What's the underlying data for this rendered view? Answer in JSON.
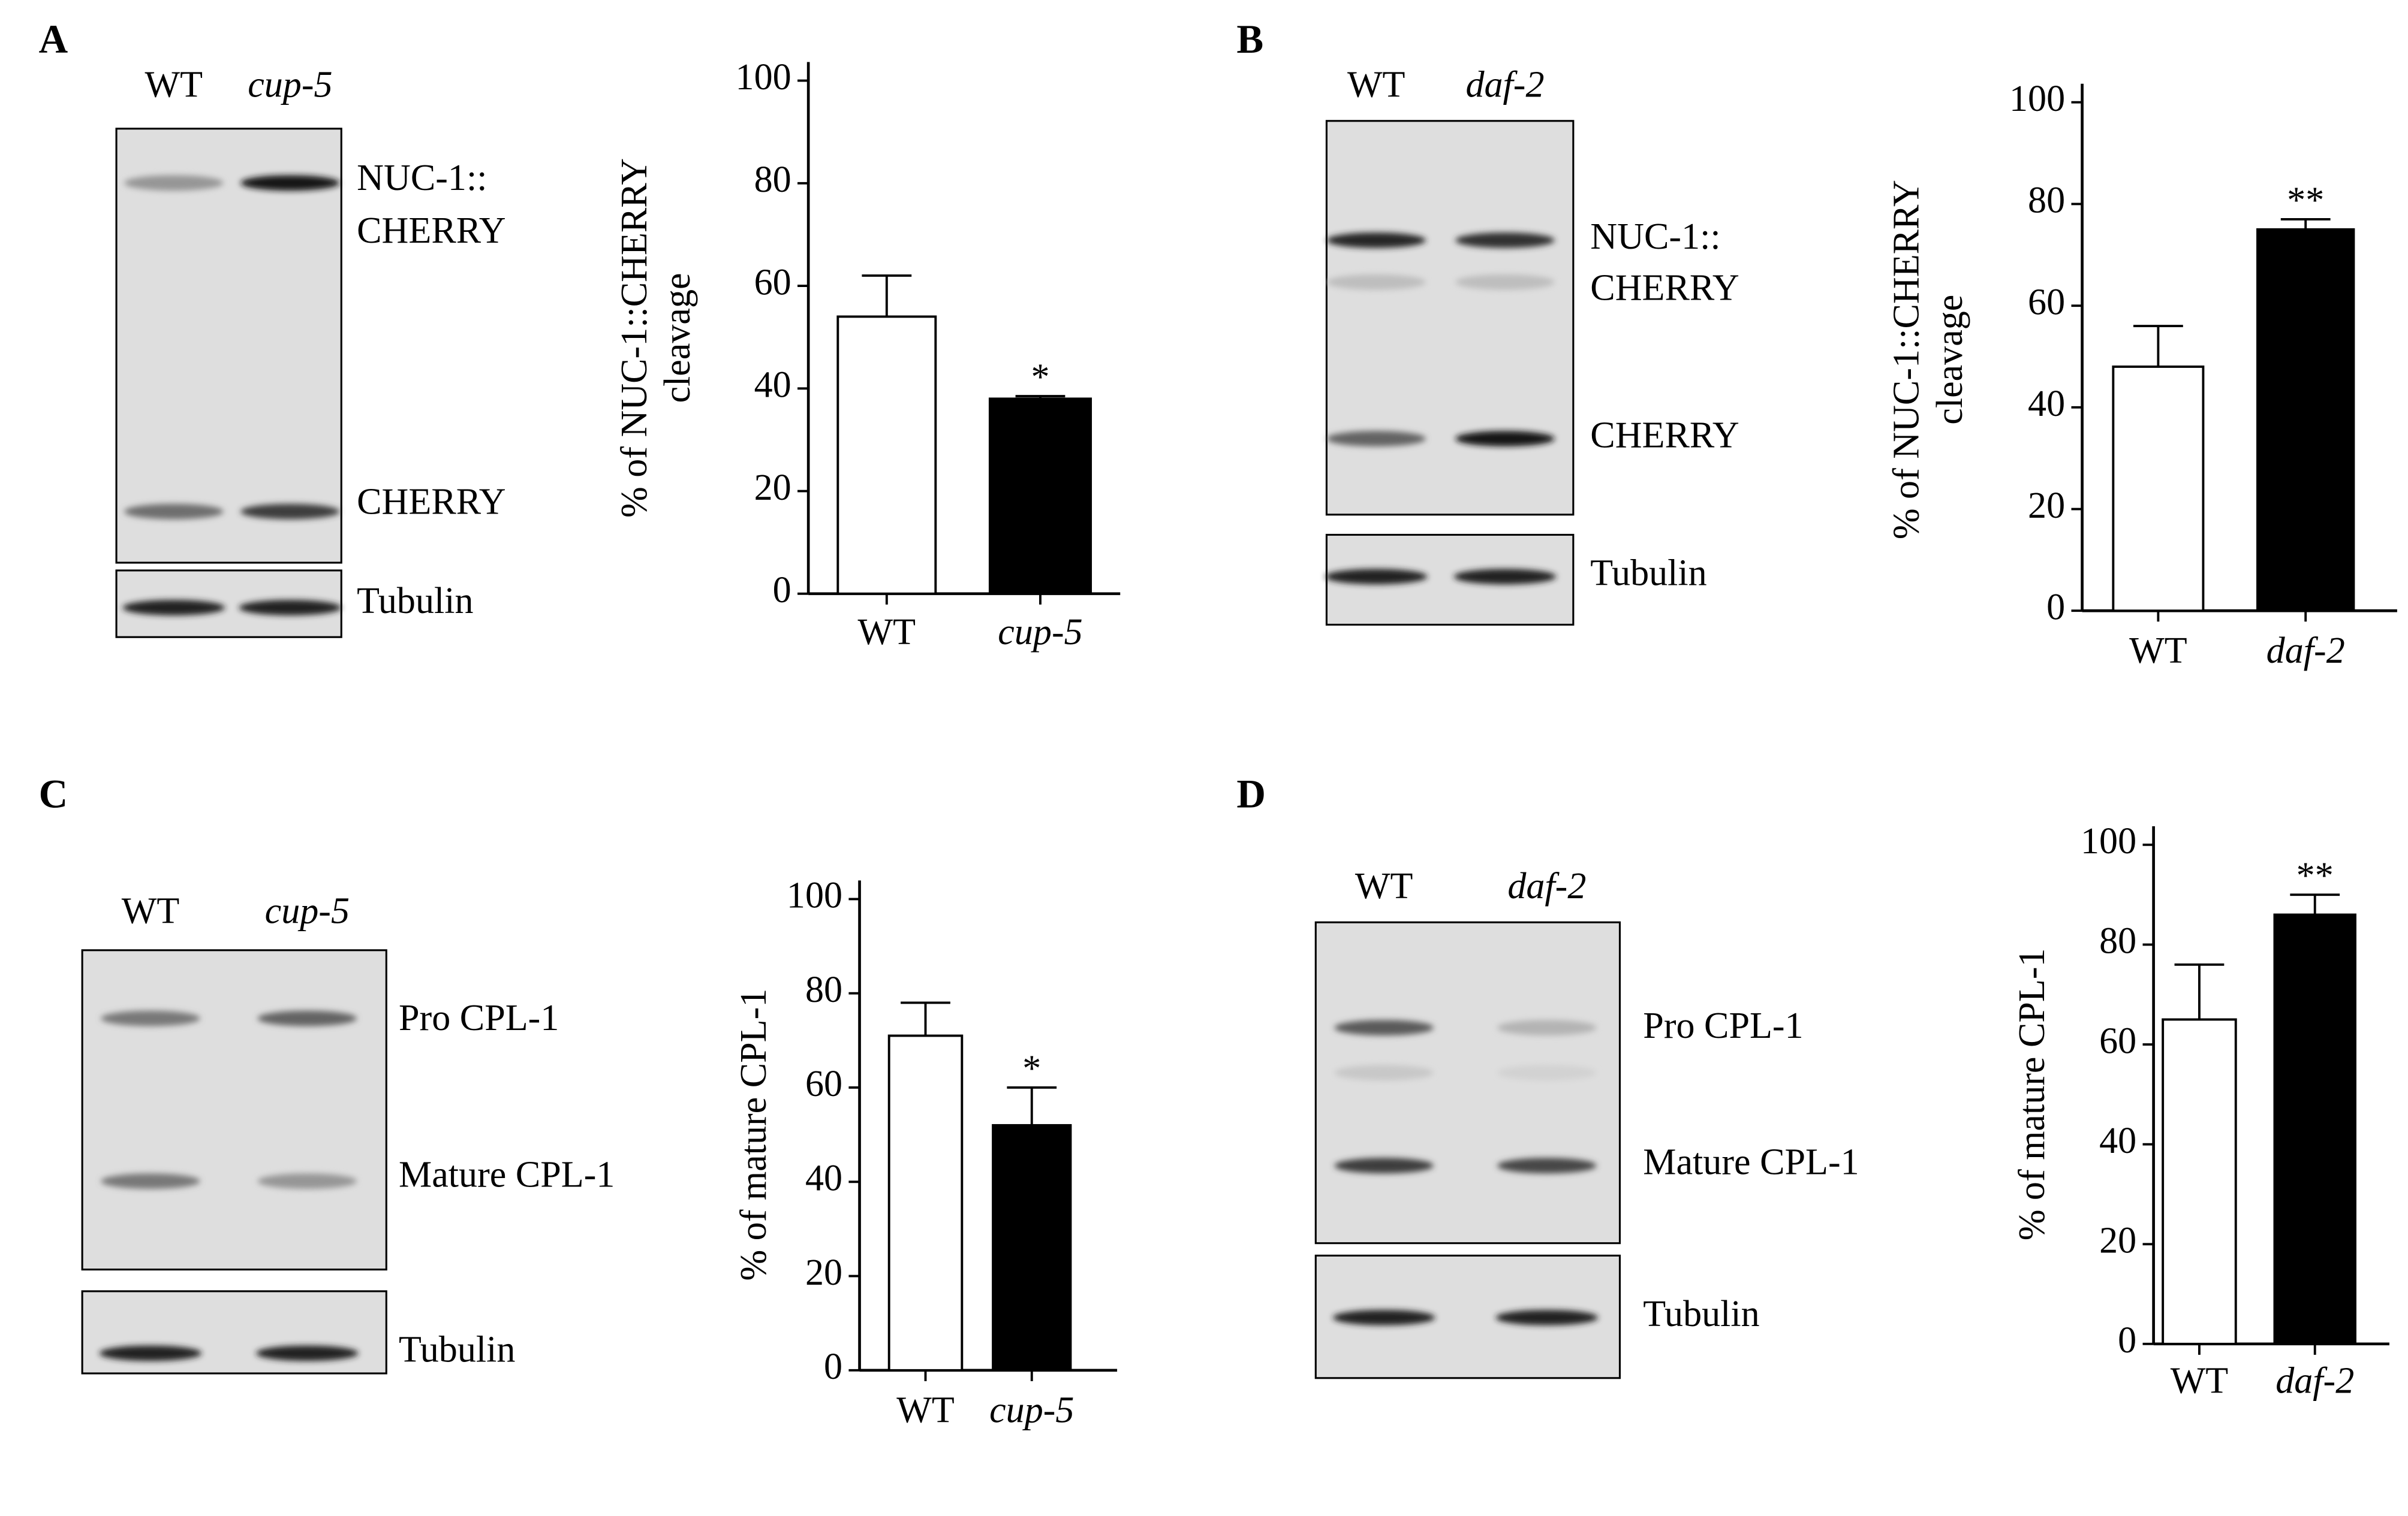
{
  "panels": [
    {
      "letter": "A",
      "lanes": [
        "WT",
        "cup-5"
      ],
      "bands": [
        [
          "NUC-1::",
          "CHERRY"
        ],
        [
          "CHERRY"
        ]
      ],
      "loading": "Tubulin"
    },
    {
      "letter": "B",
      "lanes": [
        "WT",
        "daf-2"
      ],
      "bands": [
        [
          "NUC-1::",
          "CHERRY"
        ],
        [
          "CHERRY"
        ]
      ],
      "loading": "Tubulin"
    },
    {
      "letter": "C",
      "lanes": [
        "WT",
        "cup-5"
      ],
      "bands": [
        [
          "Pro CPL-1"
        ],
        [
          "Mature CPL-1"
        ]
      ],
      "loading": "Tubulin"
    },
    {
      "letter": "D",
      "lanes": [
        "WT",
        "daf-2"
      ],
      "bands": [
        [
          "Pro CPL-1"
        ],
        [
          "Mature CPL-1"
        ]
      ],
      "loading": "Tubulin"
    }
  ],
  "chart_data": [
    {
      "type": "bar",
      "ylabel": [
        "% of NUC-1::CHERRY",
        "cleavage"
      ],
      "categories": [
        "WT",
        "cup-5"
      ],
      "values": [
        54,
        38
      ],
      "errors": [
        8,
        0.5
      ],
      "colors": [
        "#ffffff",
        "#000000"
      ],
      "annotation": "*",
      "ylim": [
        0,
        100
      ],
      "yticks": [
        0,
        20,
        40,
        60,
        80,
        100
      ]
    },
    {
      "type": "bar",
      "ylabel": [
        "% of NUC-1::CHERRY",
        "cleavage"
      ],
      "categories": [
        "WT",
        "daf-2"
      ],
      "values": [
        48,
        75
      ],
      "errors": [
        8,
        2
      ],
      "colors": [
        "#ffffff",
        "#000000"
      ],
      "annotation": "**",
      "ylim": [
        0,
        100
      ],
      "yticks": [
        0,
        20,
        40,
        60,
        80,
        100
      ]
    },
    {
      "type": "bar",
      "ylabel": [
        "% of mature CPL-1"
      ],
      "categories": [
        "WT",
        "cup-5"
      ],
      "values": [
        71,
        52
      ],
      "errors": [
        7,
        8
      ],
      "colors": [
        "#ffffff",
        "#000000"
      ],
      "annotation": "*",
      "ylim": [
        0,
        100
      ],
      "yticks": [
        0,
        20,
        40,
        60,
        80,
        100
      ]
    },
    {
      "type": "bar",
      "ylabel": [
        "% of mature CPL-1"
      ],
      "categories": [
        "WT",
        "daf-2"
      ],
      "values": [
        65,
        86
      ],
      "errors": [
        11,
        4
      ],
      "colors": [
        "#ffffff",
        "#000000"
      ],
      "annotation": "**",
      "ylim": [
        0,
        100
      ],
      "yticks": [
        0,
        20,
        40,
        60,
        80,
        100
      ]
    }
  ]
}
